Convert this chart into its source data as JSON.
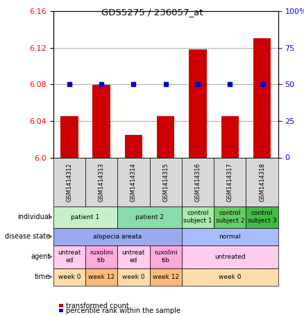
{
  "title": "GDS5275 / 236057_at",
  "samples": [
    "GSM1414312",
    "GSM1414313",
    "GSM1414314",
    "GSM1414315",
    "GSM1414316",
    "GSM1414317",
    "GSM1414318"
  ],
  "sample_short": [
    "312",
    "313",
    "314",
    "315",
    "316",
    "317",
    "318"
  ],
  "transformed_counts": [
    6.045,
    6.079,
    6.025,
    6.045,
    6.118,
    6.045,
    6.13
  ],
  "percentile_ranks": [
    50,
    50,
    50,
    50,
    50,
    50,
    50
  ],
  "ylim_left": [
    6.0,
    6.16
  ],
  "ylim_right": [
    0,
    100
  ],
  "yticks_left": [
    6.0,
    6.04,
    6.08,
    6.12,
    6.16
  ],
  "yticks_right": [
    0,
    25,
    50,
    75,
    100
  ],
  "ytick_labels_right": [
    "0",
    "25",
    "50",
    "75",
    "100%"
  ],
  "bar_color": "#cc0000",
  "dot_color": "#0000cc",
  "plot_bg": "#ffffff",
  "row_labels": [
    "individual",
    "disease state",
    "agent",
    "time"
  ],
  "col_groups": {
    "individual": [
      {
        "label": "patient 1",
        "cols": [
          0,
          1
        ],
        "color": "#c8f0c8"
      },
      {
        "label": "patient 2",
        "cols": [
          2,
          3
        ],
        "color": "#88ddaa"
      },
      {
        "label": "control\nsubject 1",
        "cols": [
          4
        ],
        "color": "#aaeaaa"
      },
      {
        "label": "control\nsubject 2",
        "cols": [
          5
        ],
        "color": "#66cc66"
      },
      {
        "label": "control\nsubject 3",
        "cols": [
          6
        ],
        "color": "#44bb44"
      }
    ],
    "disease_state": [
      {
        "label": "alopecia areata",
        "cols": [
          0,
          1,
          2,
          3
        ],
        "color": "#99aaee"
      },
      {
        "label": "normal",
        "cols": [
          4,
          5,
          6
        ],
        "color": "#aabbff"
      }
    ],
    "agent": [
      {
        "label": "untreat\ned",
        "cols": [
          0
        ],
        "color": "#ffccee"
      },
      {
        "label": "ruxolini\ntib",
        "cols": [
          1
        ],
        "color": "#ffaadd"
      },
      {
        "label": "untreat\ned",
        "cols": [
          2
        ],
        "color": "#ffccee"
      },
      {
        "label": "ruxolini\ntib",
        "cols": [
          3
        ],
        "color": "#ffaadd"
      },
      {
        "label": "untreated",
        "cols": [
          4,
          5,
          6
        ],
        "color": "#ffccee"
      }
    ],
    "time": [
      {
        "label": "week 0",
        "cols": [
          0
        ],
        "color": "#ffddaa"
      },
      {
        "label": "week 12",
        "cols": [
          1
        ],
        "color": "#ffbb77"
      },
      {
        "label": "week 0",
        "cols": [
          2
        ],
        "color": "#ffddaa"
      },
      {
        "label": "week 12",
        "cols": [
          3
        ],
        "color": "#ffbb77"
      },
      {
        "label": "week 0",
        "cols": [
          4,
          5,
          6
        ],
        "color": "#ffddaa"
      }
    ]
  }
}
